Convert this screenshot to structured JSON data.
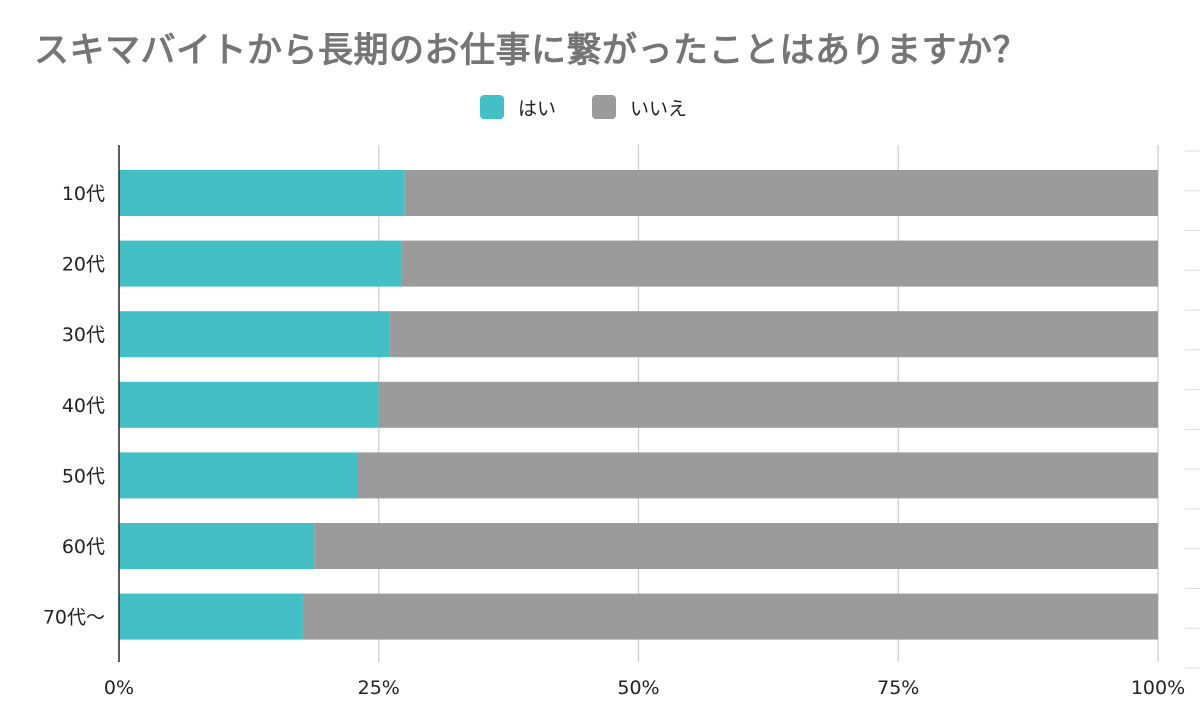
{
  "chart_data": {
    "type": "bar",
    "orientation": "horizontal",
    "stacked": true,
    "title": "スキマバイトから長期のお仕事に繋がったことはありますか？",
    "categories": [
      "10代",
      "20代",
      "30代",
      "40代",
      "50代",
      "60代",
      "70代〜"
    ],
    "series": [
      {
        "name": "はい",
        "color": "#45bfc6",
        "values": [
          27.5,
          27.2,
          26.0,
          25.0,
          23.0,
          18.8,
          17.7
        ]
      },
      {
        "name": "いいえ",
        "color": "#9b9b9b",
        "values": [
          72.5,
          72.8,
          74.0,
          75.0,
          77.0,
          81.2,
          82.3
        ]
      }
    ],
    "xlim": [
      0,
      100
    ],
    "xticks": [
      {
        "value": 0,
        "label": "0%"
      },
      {
        "value": 25,
        "label": "25%"
      },
      {
        "value": 50,
        "label": "50%"
      },
      {
        "value": 75,
        "label": "75%"
      },
      {
        "value": 100,
        "label": "100%"
      }
    ],
    "xlabel": "",
    "ylabel": "",
    "grid": true,
    "legend_position": "top-center"
  }
}
